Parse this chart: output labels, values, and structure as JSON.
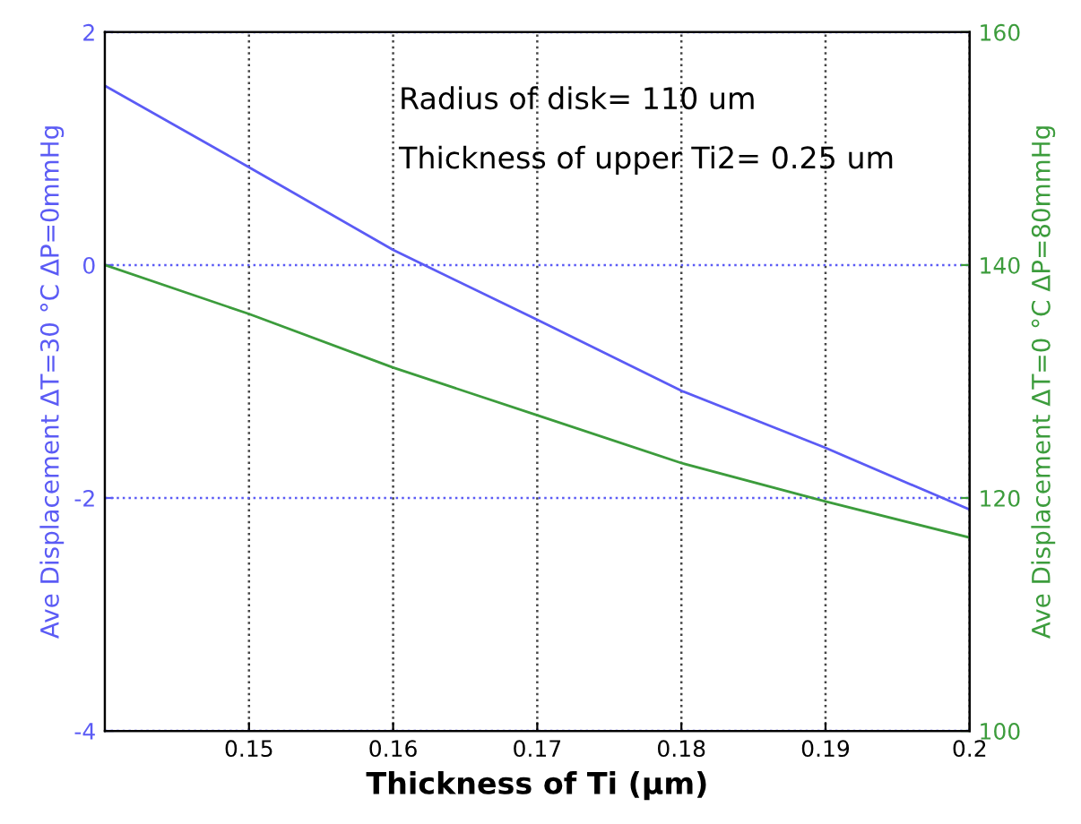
{
  "chart_data": {
    "type": "line",
    "xlabel": "Thickness of Ti (μm)",
    "ylabel": "Ave Displacement ΔT=30 °C ΔP=0mmHg",
    "y2label": "Ave Displacement ΔT=0 °C ΔP=80mmHg",
    "x": [
      0.14,
      0.15,
      0.16,
      0.17,
      0.18,
      0.19,
      0.2
    ],
    "series": [
      {
        "color": "#5b5bf5",
        "values": [
          1.54,
          0.84,
          0.13,
          -0.47,
          -1.08,
          -1.57,
          -2.1
        ]
      },
      {
        "color": "#3c9c3c",
        "axis": "y2",
        "values": [
          140,
          135.8,
          131.2,
          127.1,
          123,
          119.7,
          116.6
        ]
      }
    ],
    "xlim": [
      0.14,
      0.2
    ],
    "xticks": [
      0.15,
      0.16,
      0.17,
      0.18,
      0.19,
      0.2
    ],
    "ylim": [
      -4,
      2
    ],
    "yticks": [
      -4,
      -2,
      0,
      2
    ],
    "y2lim": [
      100,
      160
    ],
    "y2ticks": [
      100,
      120,
      140,
      160
    ],
    "grid": true,
    "line_style": "solid",
    "marker": "none",
    "annotations": [
      "Radius of disk= 110 um",
      "Thickness of upper Ti2= 0.25 um"
    ]
  }
}
